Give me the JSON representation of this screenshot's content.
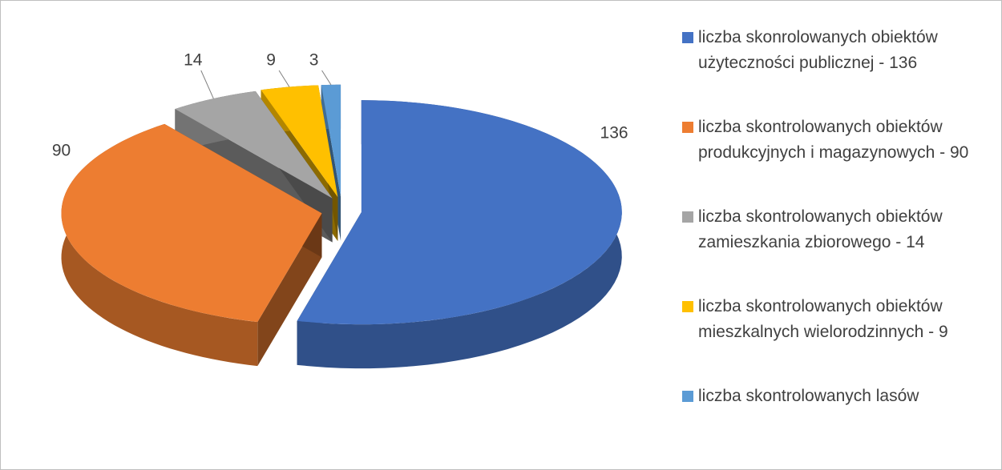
{
  "chart_data": {
    "type": "pie",
    "categories": [
      "liczba skonrolowanych obiektów użyteczności publicznej - 136",
      "liczba skontrolowanych obiektów produkcyjnych i magazynowych - 90",
      "liczba skontrolowanych obiektów zamieszkania zbiorowego - 14",
      "liczba skontrolowanych obiektów mieszkalnych wielorodzinnych - 9",
      "liczba skontrolowanych lasów"
    ],
    "values": [
      136,
      90,
      14,
      9,
      3
    ],
    "colors": [
      "#4472c4",
      "#ed7d31",
      "#a5a5a5",
      "#ffc000",
      "#5b9bd5"
    ],
    "legend": "right"
  }
}
